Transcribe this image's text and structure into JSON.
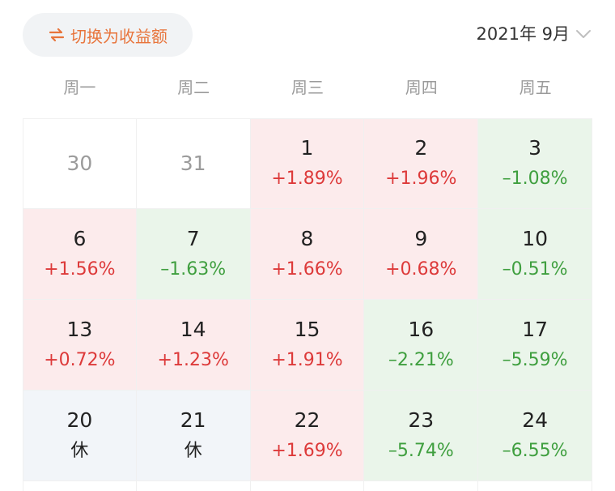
{
  "header": {
    "switch_label": "切换为收益额",
    "month_label": "2021年 9月"
  },
  "weekdays": [
    "周一",
    "周二",
    "周三",
    "周四",
    "周五"
  ],
  "colors": {
    "accent": "#e8743b",
    "up": "#dd3a3a",
    "down": "#3f9f3f",
    "up_bg": "#fcebec",
    "down_bg": "#eaf5ea",
    "rest_bg": "#f2f5f9"
  },
  "calendar": [
    {
      "day": "30",
      "value": "",
      "state": "empty"
    },
    {
      "day": "31",
      "value": "",
      "state": "empty"
    },
    {
      "day": "1",
      "value": "+1.89%",
      "state": "pos"
    },
    {
      "day": "2",
      "value": "+1.96%",
      "state": "pos"
    },
    {
      "day": "3",
      "value": "–1.08%",
      "state": "neg"
    },
    {
      "day": "6",
      "value": "+1.56%",
      "state": "pos"
    },
    {
      "day": "7",
      "value": "–1.63%",
      "state": "neg"
    },
    {
      "day": "8",
      "value": "+1.66%",
      "state": "pos"
    },
    {
      "day": "9",
      "value": "+0.68%",
      "state": "pos"
    },
    {
      "day": "10",
      "value": "–0.51%",
      "state": "neg"
    },
    {
      "day": "13",
      "value": "+0.72%",
      "state": "pos"
    },
    {
      "day": "14",
      "value": "+1.23%",
      "state": "pos"
    },
    {
      "day": "15",
      "value": "+1.91%",
      "state": "pos"
    },
    {
      "day": "16",
      "value": "–2.21%",
      "state": "neg"
    },
    {
      "day": "17",
      "value": "–5.59%",
      "state": "neg"
    },
    {
      "day": "20",
      "value": "休",
      "state": "rest"
    },
    {
      "day": "21",
      "value": "休",
      "state": "rest"
    },
    {
      "day": "22",
      "value": "+1.69%",
      "state": "pos"
    },
    {
      "day": "23",
      "value": "–5.74%",
      "state": "neg"
    },
    {
      "day": "24",
      "value": "–6.55%",
      "state": "neg"
    }
  ]
}
